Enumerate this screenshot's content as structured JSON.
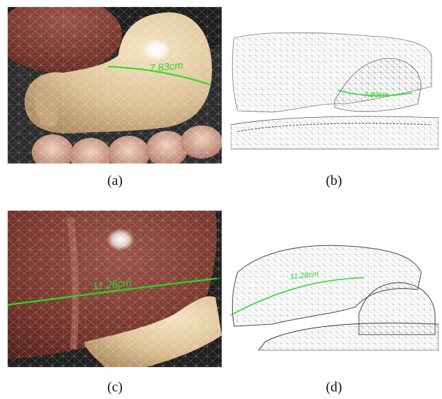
{
  "figure": {
    "panels": [
      {
        "id": "a",
        "caption": "(a)",
        "measurement": "7.83cm",
        "view": "textured-mesh"
      },
      {
        "id": "b",
        "caption": "(b)",
        "measurement": "7.83cm",
        "view": "point-cloud"
      },
      {
        "id": "c",
        "caption": "(c)",
        "measurement": "11.28cm",
        "view": "textured-mesh"
      },
      {
        "id": "d",
        "caption": "(d)",
        "measurement": "11.28cm",
        "view": "point-cloud"
      }
    ],
    "colors": {
      "measure_line": "#22dd22",
      "stomach": "#e8d2a6",
      "liver": "#7a3a30",
      "intestine": "#e5b6a0",
      "dark_bg": "#2b2b2b",
      "mesh_wire": "#ffffff",
      "point_cloud": "#6e6e6e"
    }
  }
}
